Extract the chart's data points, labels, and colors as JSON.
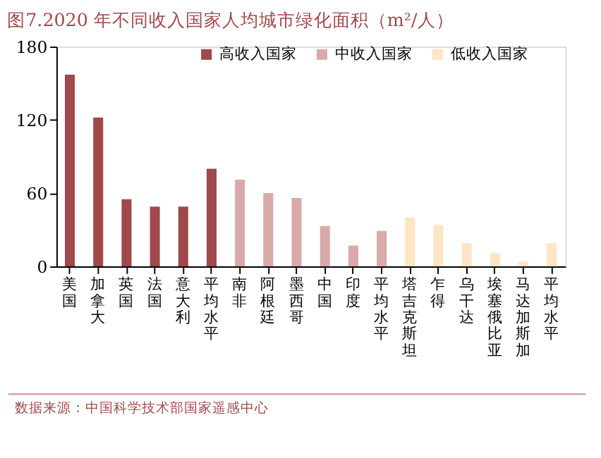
{
  "chart_data": {
    "type": "bar",
    "title": "图7.2020 年不同收入国家人均城市绿化面积（m²/人）",
    "categories": [
      "美国",
      "加拿大",
      "英国",
      "法国",
      "意大利",
      "平均水平",
      "南非",
      "阿根廷",
      "墨西哥",
      "中国",
      "印度",
      "平均水平",
      "塔吉克斯坦",
      "乍得",
      "乌干达",
      "埃塞俄比亚",
      "马达加斯加",
      "平均水平"
    ],
    "series": [
      {
        "name": "高收入国家",
        "color": "#a0494a",
        "values": [
          157,
          122,
          55,
          49,
          49,
          80,
          null,
          null,
          null,
          null,
          null,
          null,
          null,
          null,
          null,
          null,
          null,
          null
        ]
      },
      {
        "name": "中收入国家",
        "color": "#d9aaa9",
        "values": [
          null,
          null,
          null,
          null,
          null,
          null,
          71,
          60,
          56,
          33,
          17,
          29,
          null,
          null,
          null,
          null,
          null,
          null
        ]
      },
      {
        "name": "低收入国家",
        "color": "#fde5c6",
        "values": [
          null,
          null,
          null,
          null,
          null,
          null,
          null,
          null,
          null,
          null,
          null,
          null,
          40,
          34,
          19,
          11,
          4,
          19
        ]
      }
    ],
    "ylim": [
      0,
      180
    ],
    "yticks": [
      0,
      60,
      120,
      180
    ],
    "grid": false,
    "legend": "top",
    "annotations": [
      "数据来源：中国科学技术部国家遥感中心"
    ]
  }
}
